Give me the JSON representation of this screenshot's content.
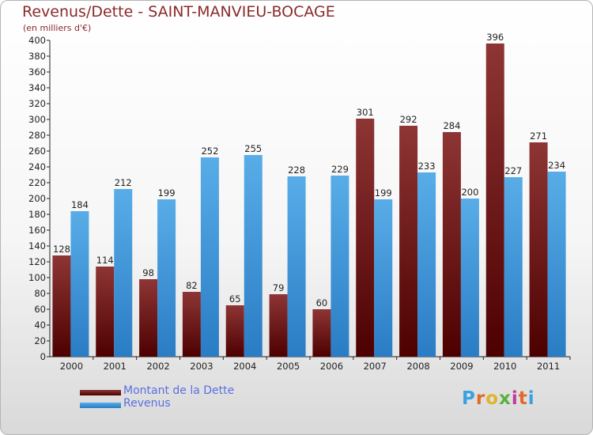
{
  "header": {
    "title": "Revenus/Dette - SAINT-MANVIEU-BOCAGE",
    "subtitle": "(en milliers d'€)"
  },
  "colors": {
    "debt": "#6e0f0f",
    "revenue": "#3a95dd",
    "title": "#8a2a2a",
    "legend_text": "#5a6fe0"
  },
  "legend": [
    {
      "label": "Montant de la Dette",
      "color": "#6e0f0f"
    },
    {
      "label": "Revenus",
      "color": "#3a95dd"
    }
  ],
  "logo": {
    "letters": [
      "P",
      "r",
      "o",
      "x",
      "i",
      "t",
      "i"
    ],
    "colors": [
      "#3aa0e0",
      "#e06a2a",
      "#e0b42a",
      "#5ab03a",
      "#c03aa0",
      "#e06a2a",
      "#3aa0e0"
    ]
  },
  "chart_data": {
    "type": "bar",
    "title": "Revenus/Dette - SAINT-MANVIEU-BOCAGE",
    "subtitle": "(en milliers d'€)",
    "categories": [
      "2000",
      "2001",
      "2002",
      "2003",
      "2004",
      "2005",
      "2006",
      "2007",
      "2008",
      "2009",
      "2010",
      "2011"
    ],
    "series": [
      {
        "name": "Montant de la Dette",
        "values": [
          128,
          114,
          98,
          82,
          65,
          79,
          60,
          301,
          292,
          284,
          396,
          271
        ]
      },
      {
        "name": "Revenus",
        "values": [
          184,
          212,
          199,
          252,
          255,
          228,
          229,
          199,
          233,
          200,
          227,
          234
        ]
      }
    ],
    "ylim": [
      0,
      400
    ],
    "ytick_step": 20,
    "grid": false,
    "legend_position": "bottom-left"
  }
}
